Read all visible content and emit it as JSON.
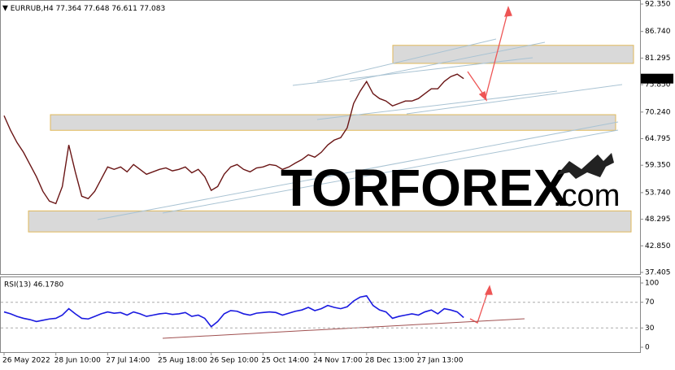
{
  "chart_data": {
    "type": "line",
    "symbol": "EURRUB,H4",
    "ohlc": [
      77.364,
      77.648,
      76.611,
      77.083
    ],
    "categories": [
      "26 May 2022",
      null,
      null,
      null,
      null,
      null,
      null,
      null,
      "28 Jun 10:00",
      null,
      null,
      null,
      null,
      null,
      null,
      null,
      "27 Jul 14:00",
      null,
      null,
      null,
      null,
      null,
      null,
      null,
      "25 Aug 18:00",
      null,
      null,
      null,
      null,
      null,
      null,
      null,
      "26 Sep 10:00",
      null,
      null,
      null,
      null,
      null,
      null,
      null,
      "25 Oct 14:00",
      null,
      null,
      null,
      null,
      null,
      null,
      null,
      "24 Nov 17:00",
      null,
      null,
      null,
      null,
      null,
      null,
      null,
      "28 Dec 13:00",
      null,
      null,
      null,
      null,
      null,
      null,
      null,
      "27 Jan 13:00",
      null,
      null,
      null,
      null,
      null,
      null,
      null
    ],
    "values": [
      69.5,
      66.5,
      64.0,
      62.0,
      59.5,
      57.0,
      54.0,
      52.0,
      51.5,
      55.0,
      63.5,
      58.0,
      53.0,
      52.5,
      54.0,
      56.5,
      59.0,
      58.5,
      59.0,
      58.0,
      59.5,
      58.5,
      57.5,
      58.0,
      58.5,
      58.8,
      58.2,
      58.5,
      59.0,
      57.8,
      58.5,
      57.0,
      54.2,
      55.0,
      57.5,
      59.0,
      59.5,
      58.5,
      58.0,
      58.8,
      59.0,
      59.5,
      59.3,
      58.5,
      59.0,
      59.8,
      60.5,
      61.5,
      61.0,
      62.0,
      63.5,
      64.5,
      65.0,
      67.0,
      72.0,
      74.5,
      76.5,
      74.0,
      73.0,
      72.5,
      71.5,
      72.0,
      72.5,
      72.5,
      73.0,
      74.0,
      75.0,
      75.0,
      76.5,
      77.5,
      78.0,
      77.083
    ],
    "color": "#6a1515",
    "ylim": [
      37.405,
      92.35
    ],
    "yticks": [
      {
        "value": 92.35,
        "label": "92.350"
      },
      {
        "value": 86.74,
        "label": "86.740"
      },
      81.295,
      {
        "value": 75.85,
        "label": "75.850"
      },
      {
        "value": 70.24,
        "label": "70.240"
      },
      64.795,
      {
        "value": 59.35,
        "label": "59.350"
      },
      {
        "value": 53.74,
        "label": "53.740"
      },
      48.295,
      {
        "value": 42.85,
        "label": "42.850"
      },
      37.405
    ],
    "zones": [
      [
        80.2,
        83.9
      ],
      [
        66.5,
        69.7
      ],
      [
        45.7,
        50.0
      ]
    ],
    "annotations": [
      "TOR",
      "FOREX",
      ".com"
    ],
    "rsi": {
      "title": "RSI(13) 46.1780",
      "color": "#1a1ae0",
      "values": [
        55,
        52,
        48,
        45,
        43,
        40,
        42,
        44,
        45,
        50,
        60,
        52,
        45,
        44,
        48,
        52,
        55,
        53,
        54,
        50,
        55,
        52,
        48,
        50,
        52,
        53,
        51,
        52,
        54,
        48,
        50,
        45,
        32,
        40,
        52,
        57,
        56,
        52,
        50,
        53,
        54,
        55,
        54,
        50,
        53,
        56,
        58,
        62,
        57,
        60,
        65,
        62,
        60,
        63,
        72,
        78,
        80,
        65,
        58,
        55,
        45,
        48,
        50,
        52,
        50,
        55,
        58,
        52,
        60,
        58,
        55,
        46.178
      ],
      "ylim": [
        0,
        100
      ],
      "yticks": [
        100,
        70,
        30,
        0
      ]
    }
  }
}
